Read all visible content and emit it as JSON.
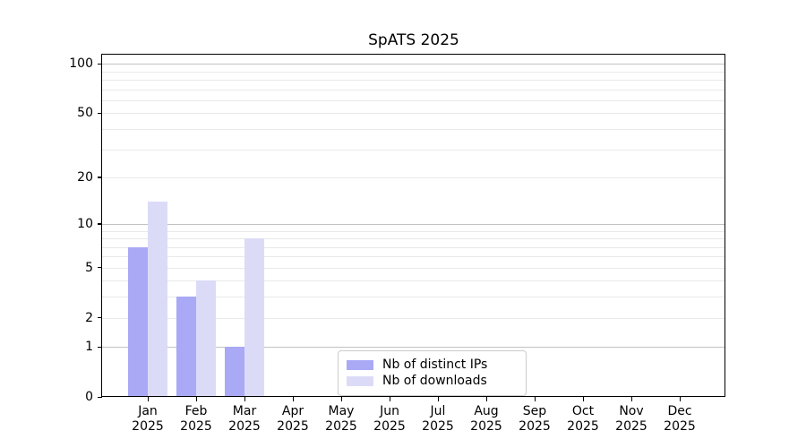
{
  "chart_data": {
    "type": "bar",
    "title": "SpATS 2025",
    "xlabel": "",
    "ylabel": "",
    "categories": [
      "Jan",
      "Feb",
      "Mar",
      "Apr",
      "May",
      "Jun",
      "Jul",
      "Aug",
      "Sep",
      "Oct",
      "Nov",
      "Dec"
    ],
    "x_tick_year": "2025",
    "series": [
      {
        "name": "Nb of distinct IPs",
        "color": "#a9a9f6",
        "values": [
          7,
          3,
          1,
          0,
          0,
          0,
          0,
          0,
          0,
          0,
          0,
          0
        ]
      },
      {
        "name": "Nb of downloads",
        "color": "#dbdbf8",
        "values": [
          14,
          4,
          8,
          0,
          0,
          0,
          0,
          0,
          0,
          0,
          0,
          0
        ]
      }
    ],
    "scale": "log1p",
    "ylim": [
      0,
      114
    ],
    "yticks": [
      0,
      1,
      2,
      5,
      10,
      20,
      50,
      100
    ],
    "grid": {
      "major": [
        1,
        10,
        100
      ],
      "minor": [
        2,
        3,
        4,
        5,
        6,
        7,
        8,
        9,
        20,
        30,
        40,
        50,
        60,
        70,
        80,
        90
      ],
      "major_color": "#c2c2c2",
      "minor_color": "#e9e9e9"
    },
    "legend_position": "lower center, inside axes"
  }
}
